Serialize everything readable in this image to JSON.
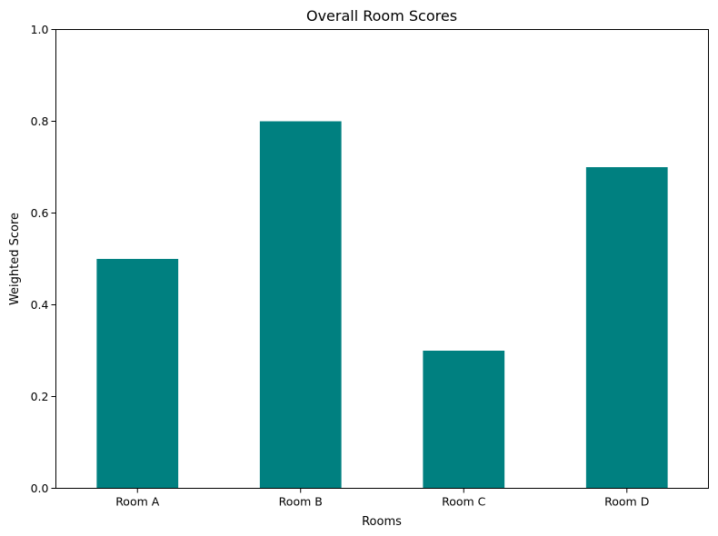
{
  "chart_data": {
    "type": "bar",
    "title": "Overall Room Scores",
    "xlabel": "Rooms",
    "ylabel": "Weighted Score",
    "categories": [
      "Room A",
      "Room B",
      "Room C",
      "Room D"
    ],
    "values": [
      0.5,
      0.8,
      0.3,
      0.7
    ],
    "ylim": [
      0,
      1
    ],
    "yticks": [
      "0.0",
      "0.2",
      "0.4",
      "0.6",
      "0.8",
      "1.0"
    ],
    "bar_color": "#008080",
    "grid": false,
    "legend": "none"
  }
}
